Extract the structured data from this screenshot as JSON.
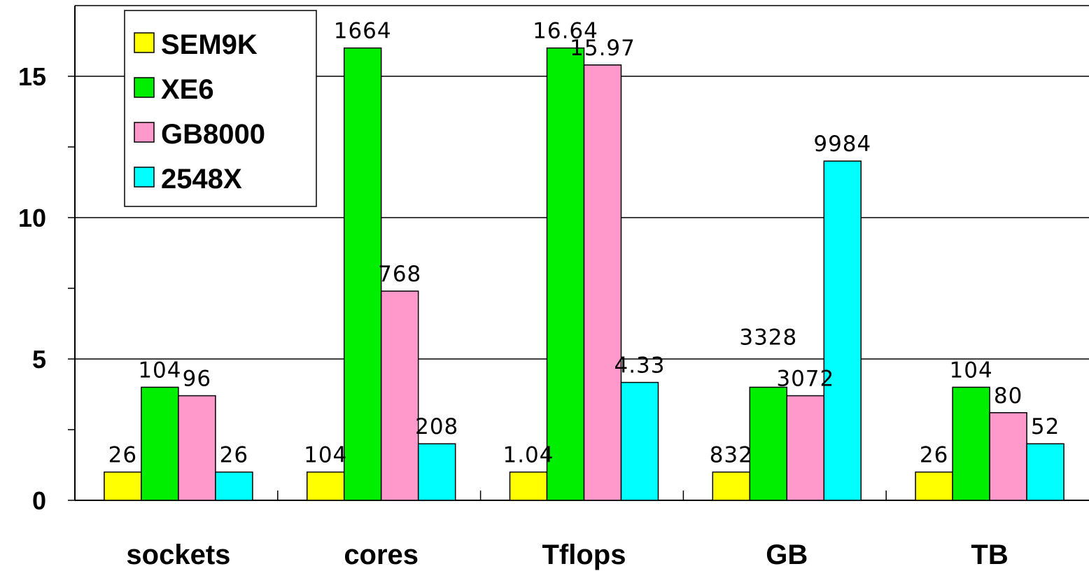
{
  "chart_data": {
    "type": "bar",
    "categories": [
      "sockets",
      "cores",
      "Tflops",
      "GB",
      "TB"
    ],
    "ylim": [
      0,
      17.5
    ],
    "yticks": [
      0,
      5,
      10,
      15
    ],
    "grid": true,
    "legend_position": "top-left",
    "series": [
      {
        "name": "SEM9K",
        "color": "#ffff00",
        "values": [
          1,
          1,
          1,
          1,
          1
        ],
        "labels": [
          "26",
          "104",
          "1.04",
          "832",
          "26"
        ]
      },
      {
        "name": "XE6",
        "color": "#00ee00",
        "values": [
          4,
          16,
          16,
          4,
          4
        ],
        "labels": [
          "104",
          "1664",
          "16.64",
          "3328",
          "104"
        ]
      },
      {
        "name": "GB8000",
        "color": "#ff99cc",
        "values": [
          3.7,
          7.4,
          15.4,
          3.7,
          3.1
        ],
        "labels": [
          "96",
          "768",
          "15.97",
          "3072",
          "80"
        ]
      },
      {
        "name": "2548X",
        "color": "#00ffff",
        "values": [
          1,
          2,
          4.17,
          12,
          2
        ],
        "labels": [
          "26",
          "208",
          "4.33",
          "9984",
          "52"
        ]
      }
    ]
  }
}
